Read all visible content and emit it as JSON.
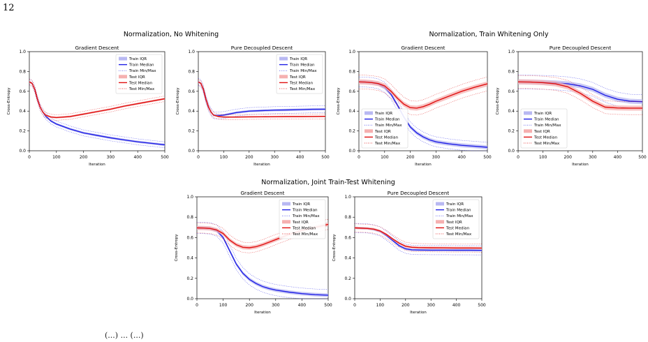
{
  "page_number": "12",
  "group_titles": [
    "Normalization, No Whitening",
    "Normalization, Train Whitening Only",
    "Normalization, Joint Train-Test Whitening"
  ],
  "caption_fragment": "(...) ... (...)",
  "colors": {
    "train": "#1f1fe6",
    "test": "#e01010",
    "train_band": "#b8b8f2",
    "test_band": "#f5b0b0"
  },
  "chart_data": [
    {
      "type": "line",
      "group": "Normalization, No Whitening",
      "title": "Gradient Descent",
      "xlabel": "Iteration",
      "ylabel": "Cross-Entropy",
      "xlim": [
        0,
        500
      ],
      "ylim": [
        0,
        1
      ],
      "xticks": [
        0,
        100,
        200,
        300,
        400,
        500
      ],
      "yticks": [
        0.0,
        0.2,
        0.4,
        0.6,
        0.8,
        1.0
      ],
      "legend_position": "top-right",
      "legend": [
        "Train IQR",
        "Train Median",
        "Train Min/Max",
        "Test IQR",
        "Test Median",
        "Test Min/Max"
      ],
      "x": [
        0,
        10,
        20,
        30,
        40,
        50,
        60,
        80,
        100,
        150,
        200,
        250,
        300,
        350,
        400,
        450,
        500
      ],
      "series": [
        {
          "name": "Train",
          "median": [
            0.695,
            0.68,
            0.62,
            0.52,
            0.44,
            0.39,
            0.35,
            0.3,
            0.27,
            0.22,
            0.18,
            0.155,
            0.13,
            0.11,
            0.09,
            0.075,
            0.06
          ],
          "iqr": 0.012,
          "minmax": 0.03
        },
        {
          "name": "Test",
          "median": [
            0.695,
            0.68,
            0.62,
            0.52,
            0.44,
            0.39,
            0.36,
            0.34,
            0.335,
            0.345,
            0.37,
            0.395,
            0.42,
            0.45,
            0.475,
            0.5,
            0.525
          ],
          "iqr": 0.01,
          "minmax": 0.028
        }
      ]
    },
    {
      "type": "line",
      "group": "Normalization, No Whitening",
      "title": "Pure Decoupled Descent",
      "xlabel": "Iteration",
      "ylabel": "Cross-Entropy",
      "xlim": [
        0,
        500
      ],
      "ylim": [
        0,
        1
      ],
      "xticks": [
        0,
        100,
        200,
        300,
        400,
        500
      ],
      "yticks": [
        0.0,
        0.2,
        0.4,
        0.6,
        0.8,
        1.0
      ],
      "legend_position": "top-right",
      "legend": [
        "Train IQR",
        "Train Median",
        "Train Min/Max",
        "Test IQR",
        "Test Median",
        "Test Min/Max"
      ],
      "x": [
        0,
        10,
        20,
        30,
        40,
        50,
        60,
        80,
        100,
        150,
        200,
        250,
        300,
        350,
        400,
        450,
        500
      ],
      "series": [
        {
          "name": "Train",
          "median": [
            0.695,
            0.68,
            0.62,
            0.52,
            0.44,
            0.39,
            0.36,
            0.355,
            0.36,
            0.385,
            0.4,
            0.405,
            0.41,
            0.412,
            0.415,
            0.418,
            0.42
          ],
          "iqr": 0.012,
          "minmax": 0.035
        },
        {
          "name": "Test",
          "median": [
            0.695,
            0.68,
            0.62,
            0.52,
            0.44,
            0.39,
            0.36,
            0.345,
            0.34,
            0.34,
            0.342,
            0.343,
            0.344,
            0.345,
            0.345,
            0.346,
            0.347
          ],
          "iqr": 0.008,
          "minmax": 0.025
        }
      ]
    },
    {
      "type": "line",
      "group": "Normalization, Train Whitening Only",
      "title": "Gradient Descent",
      "xlabel": "Iteration",
      "ylabel": "Cross-Entropy",
      "xlim": [
        0,
        500
      ],
      "ylim": [
        0,
        1
      ],
      "xticks": [
        0,
        100,
        200,
        300,
        400,
        500
      ],
      "yticks": [
        0.0,
        0.2,
        0.4,
        0.6,
        0.8,
        1.0
      ],
      "legend_position": "bottom-left",
      "legend": [
        "Train IQR",
        "Train Median",
        "Train Min/Max",
        "Test IQR",
        "Test Median",
        "Test Min/Max"
      ],
      "x": [
        0,
        25,
        50,
        75,
        100,
        125,
        150,
        175,
        200,
        225,
        250,
        275,
        300,
        350,
        400,
        450,
        500
      ],
      "series": [
        {
          "name": "Train",
          "median": [
            0.695,
            0.693,
            0.688,
            0.675,
            0.64,
            0.57,
            0.46,
            0.34,
            0.24,
            0.18,
            0.14,
            0.11,
            0.09,
            0.07,
            0.055,
            0.045,
            0.035
          ],
          "iqr": 0.02,
          "minmax": 0.05
        },
        {
          "name": "Test",
          "median": [
            0.695,
            0.693,
            0.688,
            0.678,
            0.655,
            0.6,
            0.53,
            0.47,
            0.435,
            0.43,
            0.445,
            0.47,
            0.5,
            0.55,
            0.6,
            0.64,
            0.675
          ],
          "iqr": 0.025,
          "minmax": 0.07
        }
      ]
    },
    {
      "type": "line",
      "group": "Normalization, Train Whitening Only",
      "title": "Pure Decoupled Descent",
      "xlabel": "Iteration",
      "ylabel": "Cross-Entropy",
      "xlim": [
        0,
        500
      ],
      "ylim": [
        0,
        1
      ],
      "xticks": [
        0,
        100,
        200,
        300,
        400,
        500
      ],
      "yticks": [
        0.0,
        0.2,
        0.4,
        0.6,
        0.8,
        1.0
      ],
      "legend_position": "bottom-left",
      "legend": [
        "Train IQR",
        "Train Median",
        "Train Min/Max",
        "Test IQR",
        "Test Median",
        "Test Min/Max"
      ],
      "x": [
        0,
        50,
        100,
        150,
        200,
        250,
        300,
        350,
        400,
        450,
        500
      ],
      "series": [
        {
          "name": "Train",
          "median": [
            0.695,
            0.693,
            0.69,
            0.685,
            0.675,
            0.655,
            0.62,
            0.56,
            0.52,
            0.5,
            0.495
          ],
          "iqr": 0.025,
          "minmax": 0.07
        },
        {
          "name": "Test",
          "median": [
            0.695,
            0.693,
            0.687,
            0.675,
            0.645,
            0.58,
            0.5,
            0.44,
            0.432,
            0.43,
            0.43
          ],
          "iqr": 0.025,
          "minmax": 0.065
        }
      ]
    },
    {
      "type": "line",
      "group": "Normalization, Joint Train-Test Whitening",
      "title": "Gradient Descent",
      "xlabel": "Iteration",
      "ylabel": "Cross-Entropy",
      "xlim": [
        0,
        500
      ],
      "ylim": [
        0,
        1
      ],
      "xticks": [
        0,
        100,
        200,
        300,
        400,
        500
      ],
      "yticks": [
        0.0,
        0.2,
        0.4,
        0.6,
        0.8,
        1.0
      ],
      "legend_position": "top-right",
      "legend": [
        "Train IQR",
        "Train Median",
        "Train Min/Max",
        "Test IQR",
        "Test Median",
        "Test Min/Max"
      ],
      "x": [
        0,
        25,
        50,
        75,
        100,
        125,
        150,
        175,
        200,
        225,
        250,
        275,
        300,
        350,
        400,
        450,
        500
      ],
      "series": [
        {
          "name": "Train",
          "median": [
            0.695,
            0.694,
            0.69,
            0.67,
            0.6,
            0.47,
            0.34,
            0.25,
            0.19,
            0.15,
            0.12,
            0.1,
            0.085,
            0.065,
            0.05,
            0.04,
            0.035
          ],
          "iqr": 0.018,
          "minmax": 0.055
        },
        {
          "name": "Test",
          "median": [
            0.695,
            0.694,
            0.69,
            0.675,
            0.64,
            0.575,
            0.53,
            0.505,
            0.5,
            0.51,
            0.53,
            0.555,
            0.58,
            0.63,
            0.67,
            0.7,
            0.73
          ],
          "iqr": 0.02,
          "minmax": 0.05
        }
      ]
    },
    {
      "type": "line",
      "group": "Normalization, Joint Train-Test Whitening",
      "title": "Pure Decoupled Descent",
      "xlabel": "Iteration",
      "ylabel": "Cross-Entropy",
      "xlim": [
        0,
        500
      ],
      "ylim": [
        0,
        1
      ],
      "xticks": [
        0,
        100,
        200,
        300,
        400,
        500
      ],
      "yticks": [
        0.0,
        0.2,
        0.4,
        0.6,
        0.8,
        1.0
      ],
      "legend_position": "top-right",
      "legend": [
        "Train IQR",
        "Train Median",
        "Train Min/Max",
        "Test IQR",
        "Test Median",
        "Test Min/Max"
      ],
      "x": [
        0,
        50,
        75,
        100,
        125,
        150,
        175,
        200,
        225,
        250,
        300,
        350,
        400,
        450,
        500
      ],
      "series": [
        {
          "name": "Train",
          "median": [
            0.695,
            0.69,
            0.68,
            0.66,
            0.62,
            0.57,
            0.52,
            0.49,
            0.48,
            0.478,
            0.477,
            0.477,
            0.476,
            0.476,
            0.475
          ],
          "iqr": 0.012,
          "minmax": 0.045
        },
        {
          "name": "Test",
          "median": [
            0.695,
            0.69,
            0.683,
            0.665,
            0.63,
            0.585,
            0.545,
            0.515,
            0.505,
            0.502,
            0.5,
            0.499,
            0.498,
            0.498,
            0.497
          ],
          "iqr": 0.012,
          "minmax": 0.04
        }
      ]
    }
  ]
}
